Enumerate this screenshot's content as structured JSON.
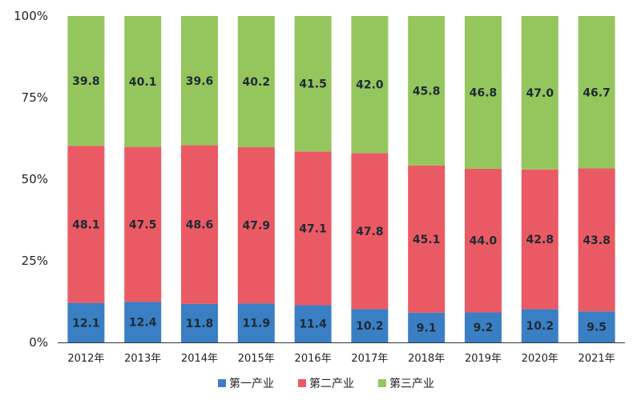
{
  "chart_data": {
    "type": "bar",
    "stacked": true,
    "percent": true,
    "categories": [
      "2012年",
      "2013年",
      "2014年",
      "2015年",
      "2016年",
      "2017年",
      "2018年",
      "2019年",
      "2020年",
      "2021年"
    ],
    "series": [
      {
        "name": "第一产业",
        "color": "#3a7fc4",
        "values": [
          12.1,
          12.4,
          11.8,
          11.9,
          11.4,
          10.2,
          9.1,
          9.2,
          10.2,
          9.5
        ]
      },
      {
        "name": "第二产业",
        "color": "#ea5a64",
        "values": [
          48.1,
          47.5,
          48.6,
          47.9,
          47.1,
          47.8,
          45.1,
          44.0,
          42.8,
          43.8
        ]
      },
      {
        "name": "第三产业",
        "color": "#95c65e",
        "values": [
          39.8,
          40.1,
          39.6,
          40.2,
          41.5,
          42.0,
          45.8,
          46.8,
          47.0,
          46.7
        ]
      }
    ],
    "yticks": [
      "0%",
      "25%",
      "50%",
      "75%",
      "100%"
    ],
    "ylim": [
      0,
      100
    ],
    "grid": false,
    "legend_position": "bottom"
  }
}
